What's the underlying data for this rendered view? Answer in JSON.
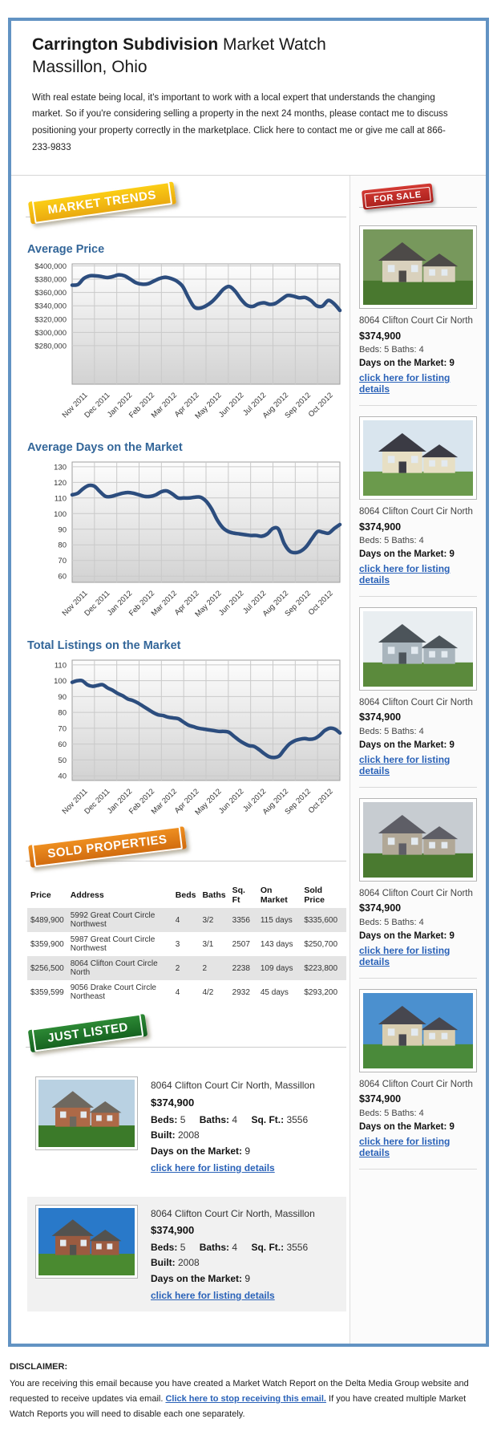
{
  "header": {
    "title_bold": "Carrington Subdivision",
    "title_rest": " Market Watch",
    "subtitle": "Massillon, Ohio",
    "intro": "With real estate being local, it's important to work with a local expert that understands the changing market. So if you're considering selling a property in the next 24 months, please contact me to discuss positioning your property correctly in the marketplace. Click here to contact me or give me call at 866-233-9833"
  },
  "badges": {
    "market_trends": "MARKET TRENDS",
    "for_sale": "FOR SALE",
    "sold_properties": "SOLD PROPERTIES",
    "just_listed": "JUST LISTED"
  },
  "colors": {
    "border_blue": "#6293c3",
    "heading_blue": "#336699",
    "chart_line": "#2c4d7e",
    "link_blue": "#2a62b8",
    "badge_yellow": "#f2b511",
    "badge_red": "#c02a26",
    "badge_orange": "#e07d17",
    "badge_green": "#1d7529"
  },
  "chart_data": [
    {
      "type": "line",
      "title": "Average Price",
      "x_labels": [
        "Nov 2011",
        "Dec 2011",
        "Jan 2012",
        "Feb 2012",
        "Mar 2012",
        "Apr 2012",
        "May 2012",
        "Jun 2012",
        "Jul 2012",
        "Aug 2012",
        "Sep 2012",
        "Oct 2012"
      ],
      "y_tick_labels": [
        "$400,000",
        "$380,000",
        "$360,000",
        "$340,000",
        "$320,000",
        "$300,000",
        "$280,000"
      ],
      "y_tick_values": [
        400000,
        380000,
        360000,
        340000,
        320000,
        300000,
        280000
      ],
      "y_max": 403000,
      "y_min": 222000,
      "grid": true,
      "values": [
        371000,
        372000,
        381000,
        385000,
        385000,
        384000,
        382500,
        384000,
        386500,
        385000,
        380000,
        374500,
        372500,
        373000,
        377000,
        381000,
        383000,
        381000,
        377000,
        369000,
        352000,
        338000,
        336500,
        340000,
        346000,
        355000,
        365000,
        369000,
        362000,
        350000,
        341000,
        339000,
        343000,
        344500,
        342000,
        344000,
        350000,
        355500,
        354500,
        352000,
        352500,
        348000,
        340000,
        339500,
        348000,
        343000,
        333000
      ]
    },
    {
      "type": "line",
      "title": "Average Days on the Market",
      "x_labels": [
        "Nov 2011",
        "Dec 2011",
        "Jan 2012",
        "Feb 2012",
        "Mar 2012",
        "Apr 2012",
        "May 2012",
        "Jun 2012",
        "Jul 2012",
        "Aug 2012",
        "Sep 2012",
        "Oct 2012"
      ],
      "y_tick_labels": [
        "130",
        "120",
        "110",
        "100",
        "90",
        "80",
        "70",
        "60"
      ],
      "y_tick_values": [
        130,
        120,
        110,
        100,
        90,
        80,
        70,
        60
      ],
      "y_max": 133,
      "y_min": 56,
      "grid": true,
      "values": [
        112,
        113,
        116,
        118,
        117.5,
        114,
        111,
        111,
        112,
        113,
        113.5,
        113,
        112,
        111,
        111,
        112,
        114,
        114.5,
        112.5,
        110,
        110,
        110,
        110.5,
        110.5,
        108,
        103,
        96,
        91,
        88.5,
        87.5,
        87,
        86.5,
        86,
        86,
        85.5,
        87,
        90.5,
        90,
        81,
        76,
        75,
        76,
        79,
        84,
        88.5,
        88,
        87.5,
        90.5,
        93
      ]
    },
    {
      "type": "line",
      "title": "Total Listings on the Market",
      "x_labels": [
        "Nov 2011",
        "Dec 2011",
        "Jan 2012",
        "Feb 2012",
        "Mar 2012",
        "Apr 2012",
        "May 2012",
        "Jun 2012",
        "Jul 2012",
        "Aug 2012",
        "Sep 2012",
        "Oct 2012"
      ],
      "y_tick_labels": [
        "110",
        "100",
        "90",
        "80",
        "70",
        "60",
        "50",
        "40"
      ],
      "y_tick_values": [
        110,
        100,
        90,
        80,
        70,
        60,
        50,
        40
      ],
      "y_max": 113,
      "y_min": 37,
      "grid": true,
      "values": [
        99,
        100,
        100,
        97.5,
        96.5,
        97,
        97.5,
        95.5,
        94,
        92,
        90.5,
        88.5,
        87.5,
        86,
        84,
        82,
        80,
        78.5,
        78,
        77,
        76.5,
        76,
        74,
        72,
        71,
        70,
        69.5,
        69,
        68.5,
        68,
        68,
        67.5,
        65,
        62.5,
        60.5,
        59,
        58.5,
        56.5,
        54,
        52,
        51.5,
        52.5,
        56.5,
        60,
        62,
        63,
        63.5,
        63,
        63.5,
        65.5,
        68.5,
        70,
        69.5,
        67
      ]
    }
  ],
  "sold_table": {
    "headers": [
      "Price",
      "Address",
      "Beds",
      "Baths",
      "Sq. Ft",
      "On Market",
      "Sold Price"
    ],
    "rows": [
      [
        "$489,900",
        "5992 Great Court Circle Northwest",
        "4",
        "3/2",
        "3356",
        "115 days",
        "$335,600"
      ],
      [
        "$359,900",
        "5987 Great Court Circle Northwest",
        "3",
        "3/1",
        "2507",
        "143 days",
        "$250,700"
      ],
      [
        "$256,500",
        "8064 Clifton Court Circle North",
        "2",
        "2",
        "2238",
        "109 days",
        "$223,800"
      ],
      [
        "$359,599",
        "9056 Drake Court Circle Northeast",
        "4",
        "4/2",
        "2932",
        "45 days",
        "$293,200"
      ]
    ]
  },
  "for_sale_listings": [
    {
      "address": "8064 Clifton Court Cir North",
      "price": "$374,900",
      "beds_baths": "Beds: 5 Baths: 4",
      "days": "Days on the Market: 9",
      "link_text": "click here for listing details",
      "photo": {
        "sky": "#77985c",
        "wall": "#d9d1bd",
        "roof": "#4d4a48",
        "grass": "#49782f"
      }
    },
    {
      "address": "8064 Clifton Court Cir North",
      "price": "$374,900",
      "beds_baths": "Beds: 5 Baths: 4",
      "days": "Days on the Market: 9",
      "link_text": "click here for listing details",
      "photo": {
        "sky": "#d9e5ee",
        "wall": "#e7dfc4",
        "roof": "#3b3b44",
        "grass": "#6b9a4c"
      }
    },
    {
      "address": "8064 Clifton Court Cir North",
      "price": "$374,900",
      "beds_baths": "Beds: 5 Baths: 4",
      "days": "Days on the Market: 9",
      "link_text": "click here for listing details",
      "photo": {
        "sky": "#e9eef1",
        "wall": "#a9b5bd",
        "roof": "#4c545a",
        "grass": "#5b8a3c"
      }
    },
    {
      "address": "8064 Clifton Court Cir North",
      "price": "$374,900",
      "beds_baths": "Beds: 5 Baths: 4",
      "days": "Days on the Market: 9",
      "link_text": "click here for listing details",
      "photo": {
        "sky": "#c7ccd1",
        "wall": "#b1a897",
        "roof": "#5e5e66",
        "grass": "#4a7a30"
      }
    },
    {
      "address": "8064 Clifton Court Cir North",
      "price": "$374,900",
      "beds_baths": "Beds: 5 Baths: 4",
      "days": "Days on the Market: 9",
      "link_text": "click here for listing details",
      "photo": {
        "sky": "#4b90cf",
        "wall": "#d8cdb0",
        "roof": "#47474f",
        "grass": "#4a8a3a"
      }
    }
  ],
  "just_listed_listings": [
    {
      "address": "8064 Clifton Court Cir North, Massillon",
      "price": "$374,900",
      "specs": {
        "beds_label": "Beds:",
        "beds": "5",
        "baths_label": "Baths:",
        "baths": "4",
        "sqft_label": "Sq. Ft.:",
        "sqft": "3556",
        "built_label": "Built:",
        "built": "2008"
      },
      "days_label": "Days on the Market:",
      "days_value": "9",
      "link_text": "click here for listing details",
      "photo": {
        "sky": "#b9d1e2",
        "wall": "#ad6947",
        "roof": "#6e685f",
        "grass": "#3b7a29"
      }
    },
    {
      "address": "8064 Clifton Court Cir North, Massillon",
      "price": "$374,900",
      "specs": {
        "beds_label": "Beds:",
        "beds": "5",
        "baths_label": "Baths:",
        "baths": "4",
        "sqft_label": "Sq. Ft.:",
        "sqft": "3556",
        "built_label": "Built:",
        "built": "2008"
      },
      "days_label": "Days on the Market:",
      "days_value": "9",
      "link_text": "click here for listing details",
      "photo": {
        "sky": "#2979c9",
        "wall": "#9b5b40",
        "roof": "#53524f",
        "grass": "#4a8a30"
      }
    }
  ],
  "disclaimer": {
    "heading": "DISCLAIMER:",
    "text_before": "You are receiving this email because you have created a Market Watch Report on the Delta Media Group website and requested to receive updates via email. ",
    "link_text": "Click here to stop receiving this email.",
    "text_after": " If you have created multiple Market Watch Reports you will need to disable each one separately."
  }
}
